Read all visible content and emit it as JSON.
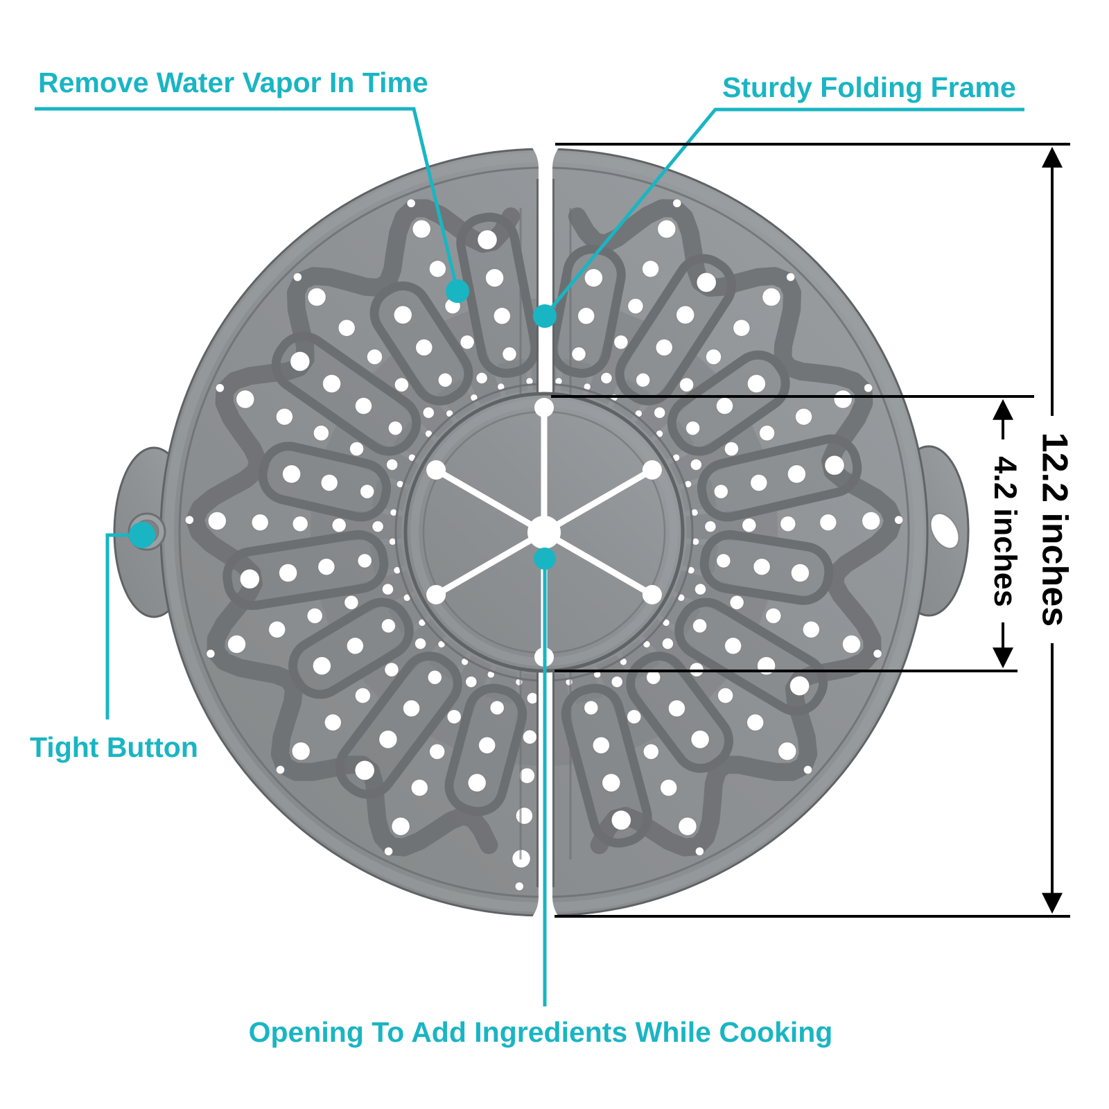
{
  "diagram": {
    "callouts": {
      "vapor": {
        "label": "Remove Water Vapor In Time"
      },
      "frame": {
        "label": "Sturdy Folding Frame"
      },
      "tight_button": {
        "label": "Tight Button"
      },
      "opening": {
        "label": "Opening To Add Ingredients While Cooking"
      }
    },
    "dimensions": {
      "overall_diameter": {
        "label": "12.2 inches"
      },
      "inner_circle": {
        "label": "4.2 inches"
      }
    },
    "colors": {
      "accent": "#1ab5c3",
      "dimension_lines": "#000000",
      "product_base": "#8f9295",
      "product_light": "#9ba0a3",
      "product_dark": "#7f8386",
      "pattern_dark": "#6c6f72",
      "rim_dark": "#5f6366",
      "stripe": "#7d8084",
      "hole": "#ffffff"
    }
  }
}
